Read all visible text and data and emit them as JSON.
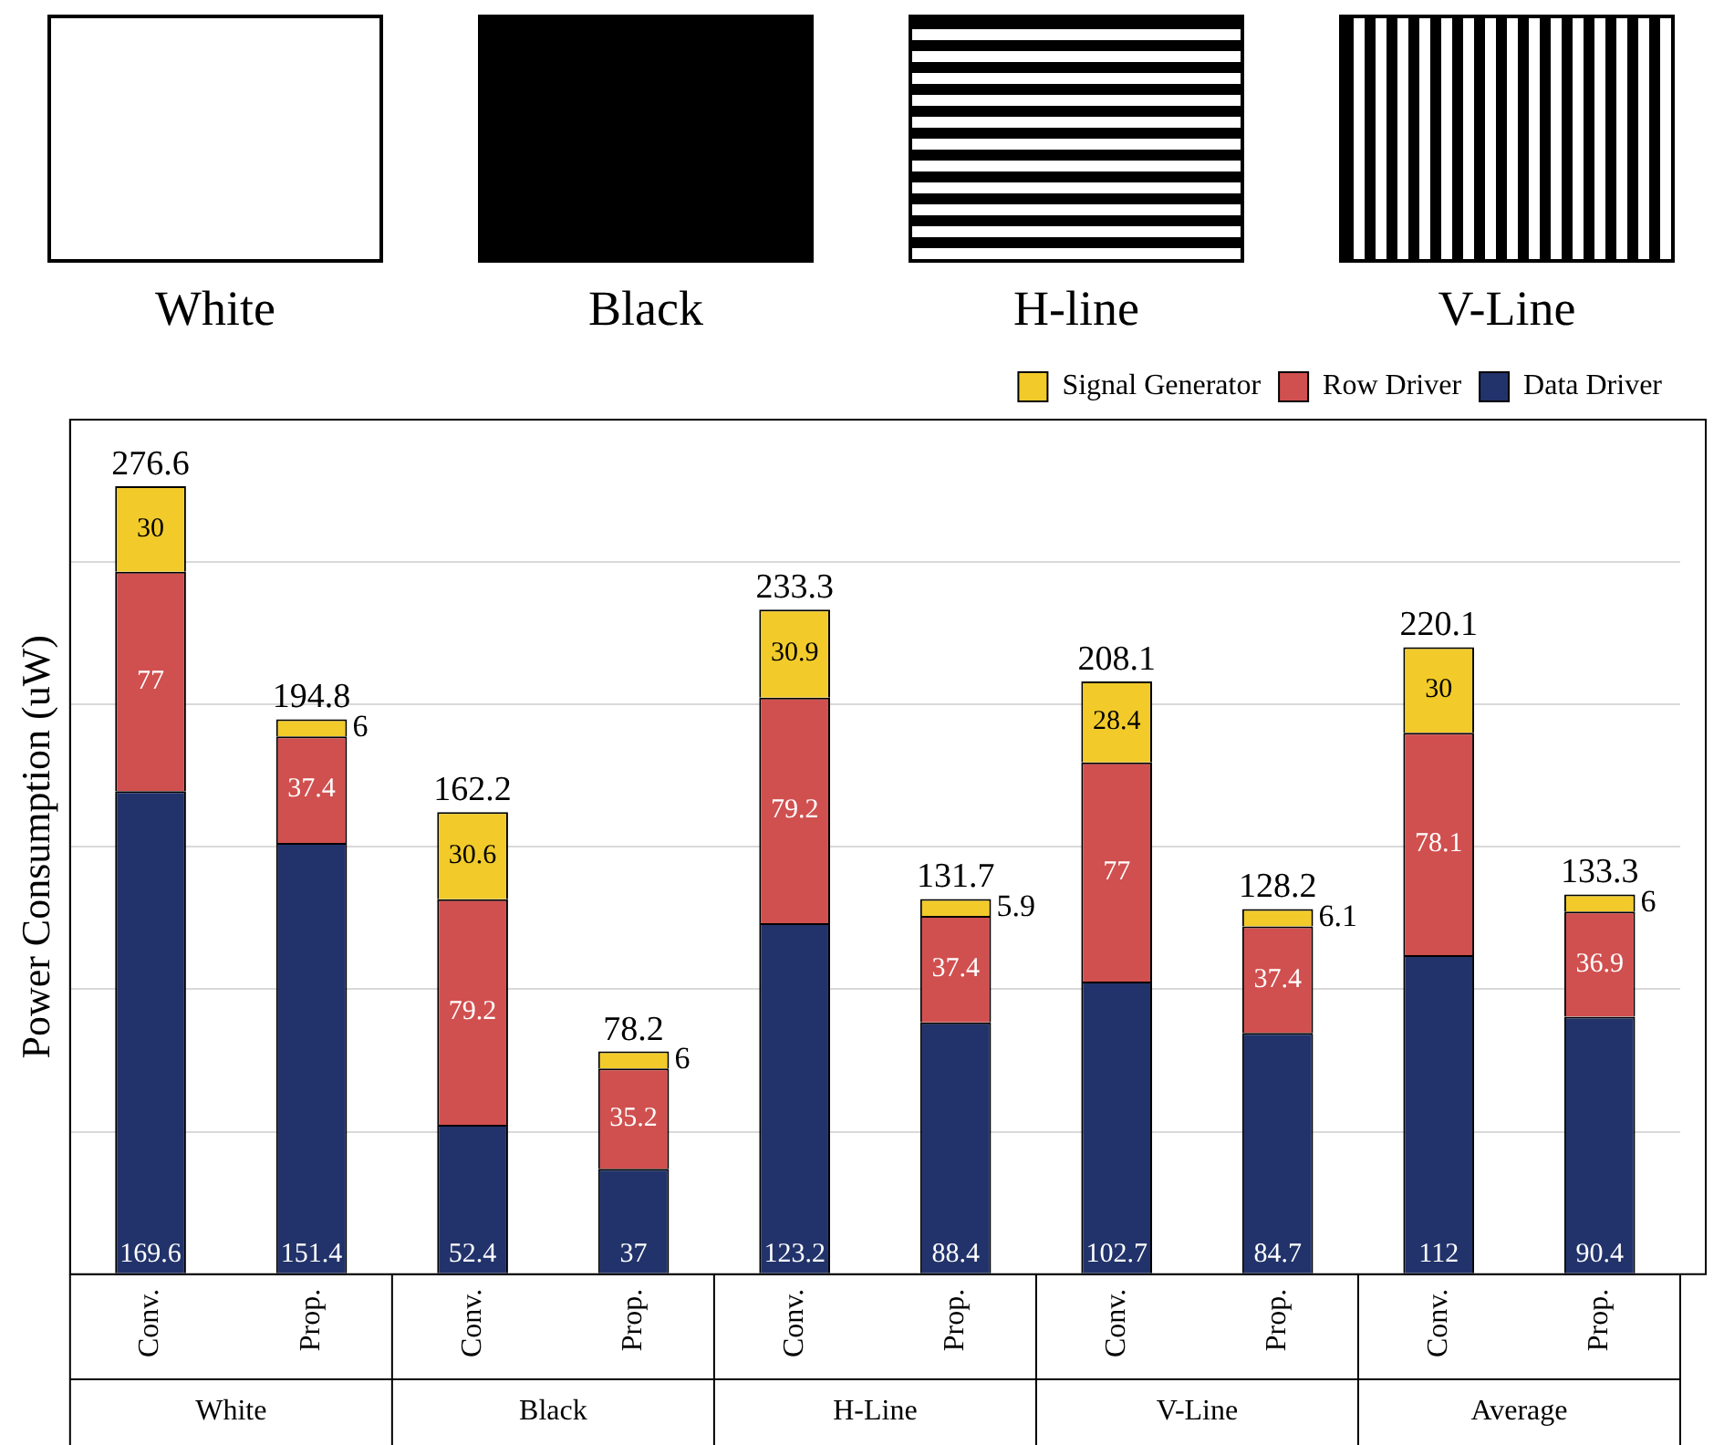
{
  "chart_data": {
    "type": "bar",
    "stacked": true,
    "ylabel": "Power Consumption (uW)",
    "categories": [
      "Conv.",
      "Prop.",
      "Conv.",
      "Prop.",
      "Conv.",
      "Prop.",
      "Conv.",
      "Prop.",
      "Conv.",
      "Prop."
    ],
    "series": [
      {
        "name": "Data Driver",
        "color": "#22336b",
        "values": [
          169.6,
          151.4,
          52.4,
          37,
          123.2,
          88.4,
          102.7,
          84.7,
          112,
          90.4
        ]
      },
      {
        "name": "Row Driver",
        "color": "#d0504f",
        "values": [
          77,
          37.4,
          79.2,
          35.2,
          79.2,
          37.4,
          77,
          37.4,
          78.1,
          36.9
        ]
      },
      {
        "name": "Signal Generator",
        "color": "#f2cb2a",
        "values": [
          30,
          6,
          30.6,
          6,
          30.9,
          5.9,
          28.4,
          6.1,
          30,
          6
        ]
      }
    ],
    "totals": [
      "276.6",
      "194.8",
      "162.2",
      "78.2",
      "233.3",
      "131.7",
      "208.1",
      "128.2",
      "220.1",
      "133.3"
    ],
    "data_labels": true,
    "ylim": [
      0,
      300
    ],
    "yticks": [
      {
        "value": 0,
        "label": null
      },
      {
        "value": 50,
        "label": null
      },
      {
        "value": 100,
        "label": null
      },
      {
        "value": 150,
        "label": null
      },
      {
        "value": 200,
        "label": null
      },
      {
        "value": 250,
        "label": null
      }
    ],
    "tick_labels": "x",
    "grid": "y",
    "legend": "top right",
    "annotations": [
      "White",
      "Black",
      "H-Line",
      "V-Line",
      "Average",
      "White",
      "Black",
      "H-line",
      "V-Line"
    ]
  }
}
